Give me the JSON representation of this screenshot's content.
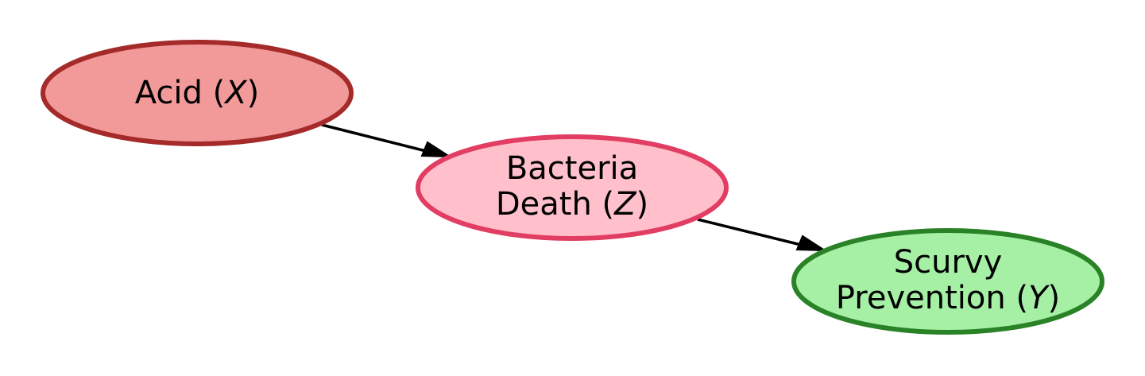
{
  "nodes": {
    "acid": {
      "label": "Acid (",
      "variable": "X",
      "close": ")",
      "fill": "#F29A99",
      "stroke": "#A52A2A"
    },
    "bacteria": {
      "line1": "Bacteria",
      "line2": "Death (",
      "variable": "Z",
      "close": ")",
      "fill": "#FFC0CB",
      "stroke": "#E23D63"
    },
    "scurvy": {
      "line1": "Scurvy",
      "line2": "Prevention (",
      "variable": "Y",
      "close": ")",
      "fill": "#A6F0A6",
      "stroke": "#2A8227"
    }
  },
  "edges": [
    {
      "from": "Acid (X)",
      "to": "Bacteria Death (Z)"
    },
    {
      "from": "Bacteria Death (Z)",
      "to": "Scurvy Prevention (Y)"
    }
  ]
}
